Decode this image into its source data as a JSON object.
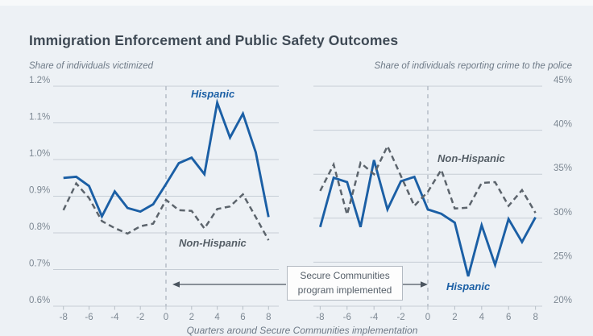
{
  "header": {
    "title": "Immigration Enforcement and Public Safety Outcomes"
  },
  "footer": {
    "xlabel": "Quarters around Secure Communities implementation"
  },
  "annotation": {
    "line1": "Secure Communities",
    "line2": "program implemented"
  },
  "colors": {
    "hispanic_line": "#1b5fa5",
    "non_hispanic_line": "#5c646c",
    "grid": "#c6cdd5",
    "background": "#edf1f5",
    "event_line": "#adb6bf",
    "arrow": "#4b555f",
    "tick_text": "#7d8893"
  },
  "chart_data": [
    {
      "type": "line",
      "title": "Share of individuals victimized",
      "xlabel": "Quarters around Secure Communities implementation",
      "x": [
        -8,
        -7,
        -6,
        -5,
        -4,
        -3,
        -2,
        -1,
        0,
        1,
        2,
        3,
        4,
        5,
        6,
        7,
        8
      ],
      "xticks": [
        -8,
        -6,
        -4,
        -2,
        0,
        2,
        4,
        6,
        8
      ],
      "ylim": [
        0.6,
        1.2
      ],
      "ytick_values": [
        1.2,
        1.1,
        1.0,
        0.9,
        0.8,
        0.7,
        0.6
      ],
      "ytick_labels": [
        "1.2%",
        "1.1%",
        "1.0%",
        "0.9%",
        "0.8%",
        "0.7%",
        "0.6%"
      ],
      "event_line_x": 0,
      "grid": true,
      "legend": "inline-labels",
      "series": [
        {
          "name": "Hispanic",
          "dash": false,
          "values": [
            0.95,
            0.953,
            0.928,
            0.845,
            0.913,
            0.868,
            0.858,
            0.878,
            0.933,
            0.99,
            1.005,
            0.96,
            1.155,
            1.06,
            1.125,
            1.02,
            0.843
          ]
        },
        {
          "name": "Non-Hispanic",
          "dash": true,
          "values": [
            0.862,
            0.935,
            0.895,
            0.832,
            0.813,
            0.798,
            0.818,
            0.825,
            0.89,
            0.862,
            0.86,
            0.812,
            0.865,
            0.872,
            0.905,
            0.843,
            0.78
          ]
        }
      ]
    },
    {
      "type": "line",
      "title": "Share of individuals reporting crime to the police",
      "xlabel": "Quarters around Secure Communities implementation",
      "x": [
        -8,
        -7,
        -6,
        -5,
        -4,
        -3,
        -2,
        -1,
        0,
        1,
        2,
        3,
        4,
        5,
        6,
        7,
        8
      ],
      "xticks": [
        -8,
        -6,
        -4,
        -2,
        0,
        2,
        4,
        6,
        8
      ],
      "ylim": [
        20,
        45
      ],
      "ytick_values": [
        45,
        40,
        35,
        30,
        25,
        20
      ],
      "ytick_labels": [
        "45%",
        "40%",
        "35%",
        "30%",
        "25%",
        "20%"
      ],
      "event_line_x": 0,
      "grid": true,
      "legend": "inline-labels",
      "series": [
        {
          "name": "Hispanic",
          "dash": false,
          "values": [
            29.0,
            34.6,
            34.1,
            29.0,
            36.6,
            31.0,
            34.2,
            34.7,
            31.0,
            30.5,
            29.5,
            23.4,
            29.2,
            24.7,
            29.9,
            27.3,
            30.1
          ]
        },
        {
          "name": "Non-Hispanic",
          "dash": true,
          "values": [
            33.1,
            36.1,
            30.4,
            36.3,
            35.0,
            38.2,
            34.8,
            31.4,
            33.0,
            35.5,
            31.1,
            31.2,
            34.0,
            34.1,
            31.4,
            33.2,
            30.6
          ]
        }
      ]
    }
  ]
}
